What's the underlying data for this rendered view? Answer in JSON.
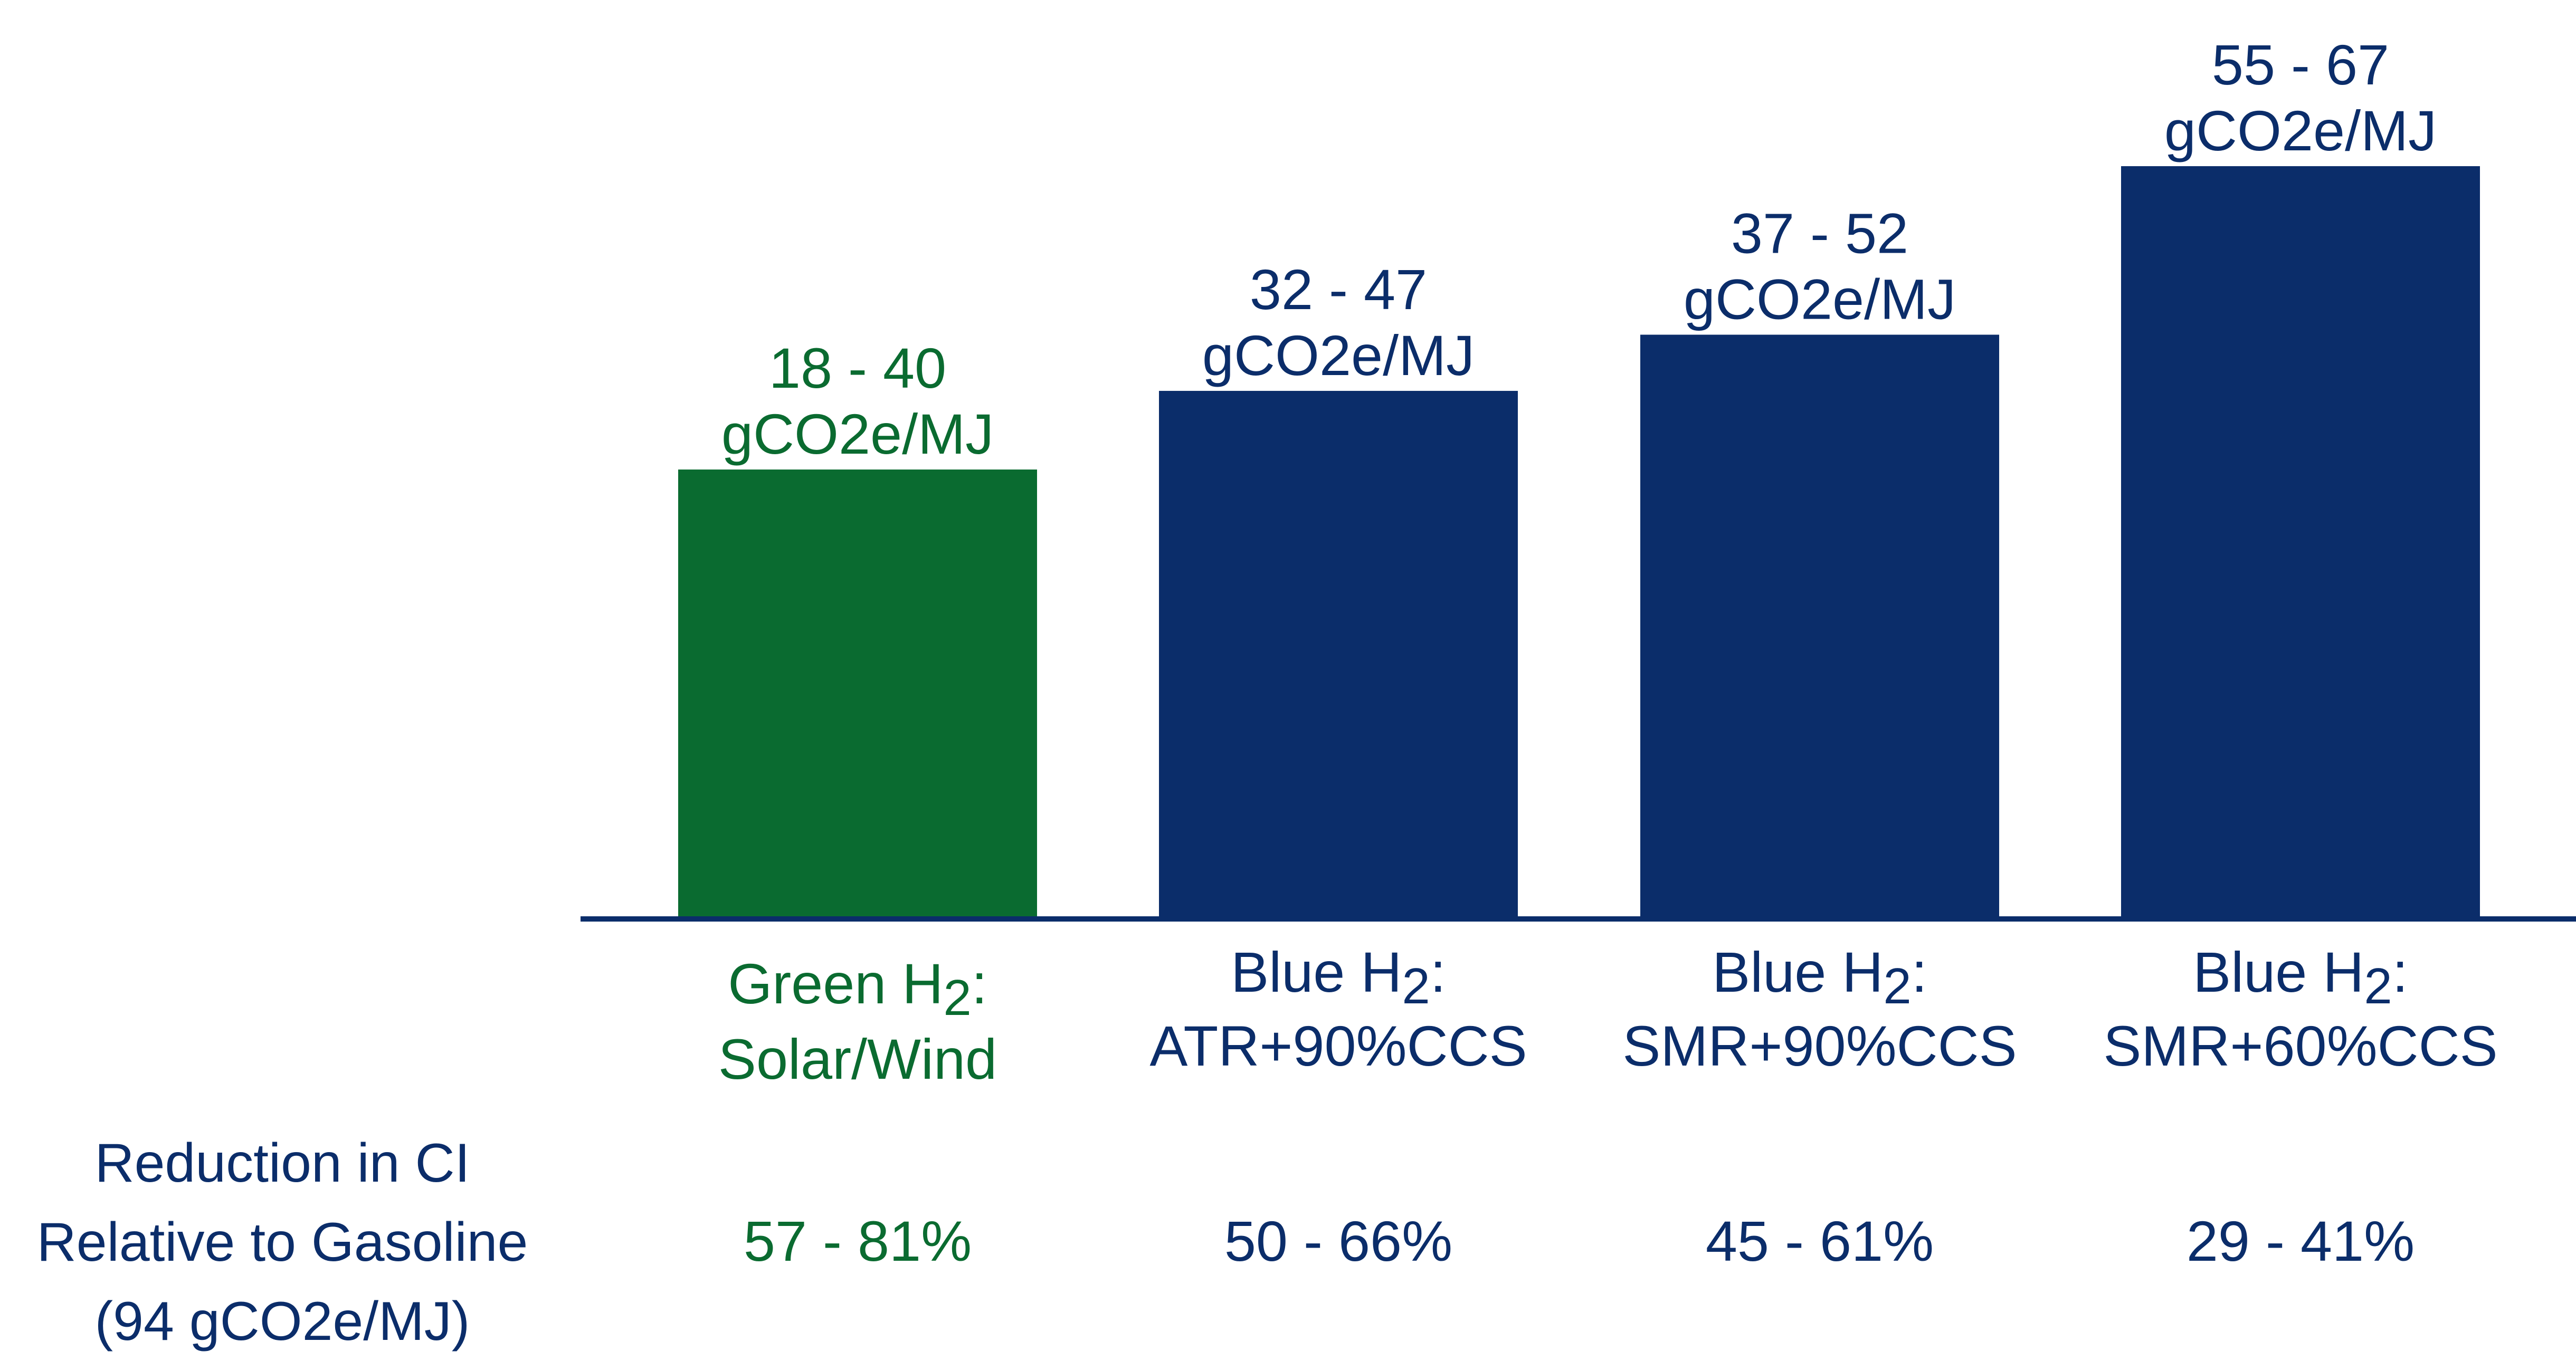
{
  "colors": {
    "green": "#0a6b30",
    "blue": "#0b2d6a",
    "axis": "#0b2d6a"
  },
  "chart_data": {
    "type": "bar",
    "title": "",
    "xlabel": "",
    "ylabel": "",
    "ylim": [
      0,
      67
    ],
    "grid": false,
    "categories": [
      {
        "line1": "Green H",
        "sub": "2",
        "line1_end": ":",
        "line2": "Solar/Wind"
      },
      {
        "line1": "Blue H",
        "sub": "2",
        "line1_end": ":",
        "line2": "ATR+90%CCS"
      },
      {
        "line1": "Blue H",
        "sub": "2",
        "line1_end": ":",
        "line2": "SMR+90%CCS"
      },
      {
        "line1": "Blue H",
        "sub": "2",
        "line1_end": ":",
        "line2": "SMR+60%CCS"
      }
    ],
    "series": [
      {
        "ranges": [
          [
            18,
            40
          ],
          [
            32,
            47
          ],
          [
            37,
            52
          ],
          [
            55,
            67
          ]
        ],
        "bar_values": [
          40,
          47,
          52,
          67
        ],
        "colors": [
          "#0a6b30",
          "#0b2d6a",
          "#0b2d6a",
          "#0b2d6a"
        ]
      }
    ],
    "data_labels": [
      [
        "18 - 40",
        "gCO2e/MJ"
      ],
      [
        "32 - 47",
        "gCO2e/MJ"
      ],
      [
        "37 - 52",
        "gCO2e/MJ"
      ],
      [
        "55 - 67",
        "gCO2e/MJ"
      ]
    ]
  },
  "reduction": {
    "label_lines": [
      "Reduction in CI",
      "Relative to Gasoline",
      "(94 gCO2e/MJ)"
    ],
    "values": [
      "57 - 81%",
      "50 - 66%",
      "45 - 61%",
      "29 - 41%"
    ]
  }
}
